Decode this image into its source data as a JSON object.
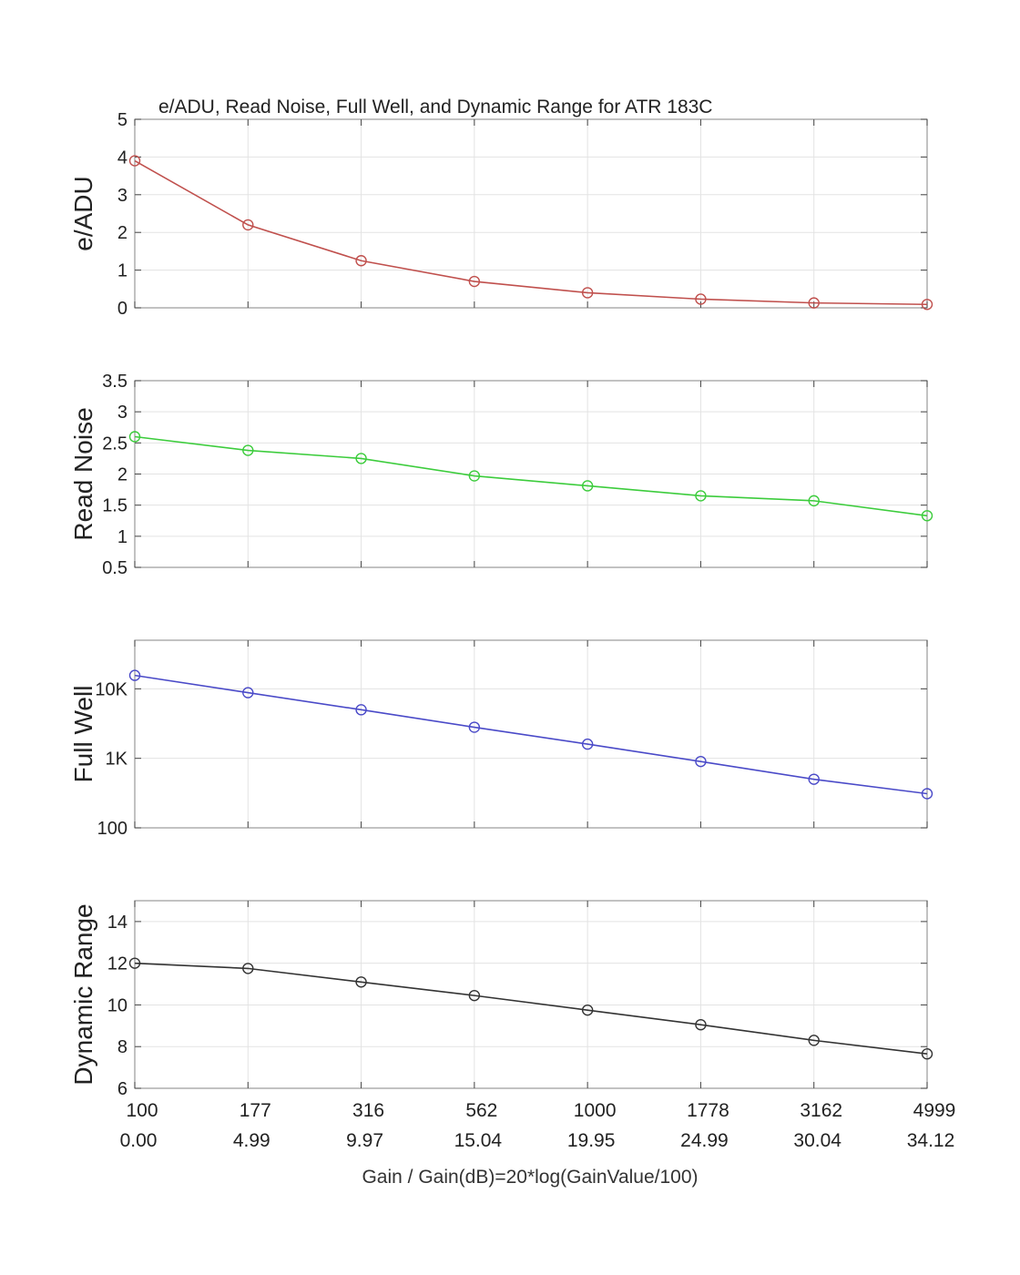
{
  "figure": {
    "title": "e/ADU, Read Noise, Full Well, and Dynamic Range for ATR 183C",
    "xlabel": "Gain / Gain(dB)=20*log(GainValue/100)",
    "x_gain_labels": [
      "100",
      "177",
      "316",
      "562",
      "1000",
      "1778",
      "3162",
      "4999"
    ],
    "x_db_labels": [
      "0.00",
      "4.99",
      "9.97",
      "15.04",
      "19.95",
      "24.99",
      "30.04",
      "34.12"
    ]
  },
  "chart_data": [
    {
      "type": "line",
      "ylabel": "e/ADU",
      "color": "#c0504d",
      "grid": true,
      "yscale": "linear",
      "ylim": [
        0,
        5
      ],
      "yticks": [
        0,
        1,
        2,
        3,
        4,
        5
      ],
      "ytick_labels": [
        "0",
        "1",
        "2",
        "3",
        "4",
        "5"
      ],
      "x": [
        100,
        177,
        316,
        562,
        1000,
        1778,
        3162,
        4999
      ],
      "values": [
        3.9,
        2.2,
        1.25,
        0.7,
        0.4,
        0.23,
        0.13,
        0.09
      ]
    },
    {
      "type": "line",
      "ylabel": "Read Noise",
      "color": "#3ccc3c",
      "grid": true,
      "yscale": "linear",
      "ylim": [
        0.5,
        3.5
      ],
      "yticks": [
        0.5,
        1,
        1.5,
        2,
        2.5,
        3,
        3.5
      ],
      "ytick_labels": [
        "0.5",
        "1",
        "1.5",
        "2",
        "2.5",
        "3",
        "3.5"
      ],
      "x": [
        100,
        177,
        316,
        562,
        1000,
        1778,
        3162,
        4999
      ],
      "values": [
        2.6,
        2.38,
        2.25,
        1.97,
        1.81,
        1.65,
        1.57,
        1.33
      ]
    },
    {
      "type": "line",
      "ylabel": "Full Well",
      "color": "#4a4ac8",
      "grid": true,
      "yscale": "log",
      "ylim": [
        100,
        50000
      ],
      "yticks": [
        100,
        1000,
        10000
      ],
      "ytick_labels": [
        "100",
        "1K",
        "10K"
      ],
      "x": [
        100,
        177,
        316,
        562,
        1000,
        1778,
        3162,
        4999
      ],
      "values": [
        15600,
        8800,
        5000,
        2800,
        1600,
        900,
        500,
        310
      ]
    },
    {
      "type": "line",
      "ylabel": "Dynamic Range",
      "color": "#333333",
      "grid": true,
      "yscale": "linear",
      "ylim": [
        6,
        15
      ],
      "yticks": [
        6,
        8,
        10,
        12,
        14
      ],
      "ytick_labels": [
        "6",
        "8",
        "10",
        "12",
        "14"
      ],
      "x": [
        100,
        177,
        316,
        562,
        1000,
        1778,
        3162,
        4999
      ],
      "values": [
        12.0,
        11.75,
        11.1,
        10.45,
        9.75,
        9.05,
        8.3,
        7.65
      ]
    }
  ]
}
